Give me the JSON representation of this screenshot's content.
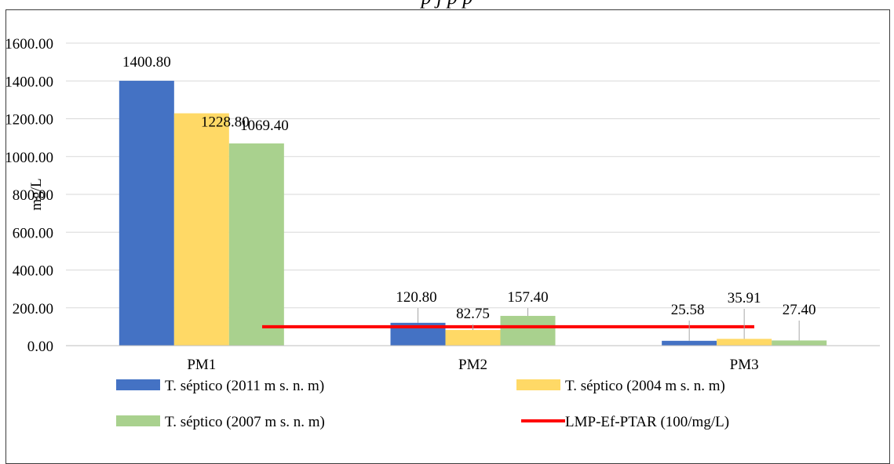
{
  "caption": "p                                  j          p                                                          p",
  "chart_data": {
    "type": "bar",
    "ylabel": "mg/L",
    "ylim": [
      0,
      1600
    ],
    "yticks": [
      "0.00",
      "200.00",
      "400.00",
      "600.00",
      "800.00",
      "1000.00",
      "1200.00",
      "1400.00",
      "1600.00"
    ],
    "ytick_values": [
      0,
      200,
      400,
      600,
      800,
      1000,
      1200,
      1400,
      1600
    ],
    "grid": true,
    "categories": [
      "PM1",
      "PM2",
      "PM3"
    ],
    "series": [
      {
        "name": "T. séptico (2011 m s. n. m)",
        "color": "#4472c4",
        "values": [
          1400.8,
          120.8,
          25.58
        ],
        "labels": [
          "1400.80",
          "120.80",
          "25.58"
        ]
      },
      {
        "name": "T. séptico (2004 m s. n. m)",
        "color": "#ffd966",
        "values": [
          1228.8,
          82.75,
          35.91
        ],
        "labels": [
          "1228.80",
          "82.75",
          "35.91"
        ]
      },
      {
        "name": "T. séptico (2007 m s. n. m)",
        "color": "#a9d18e",
        "values": [
          1069.4,
          157.4,
          27.4
        ],
        "labels": [
          "1069.40",
          "157.40",
          "27.40"
        ]
      }
    ],
    "reference_line": {
      "name": "LMP-Ef-PTAR (100/mg/L)",
      "value": 100,
      "color": "#ff0000"
    },
    "legend_position": "bottom"
  }
}
